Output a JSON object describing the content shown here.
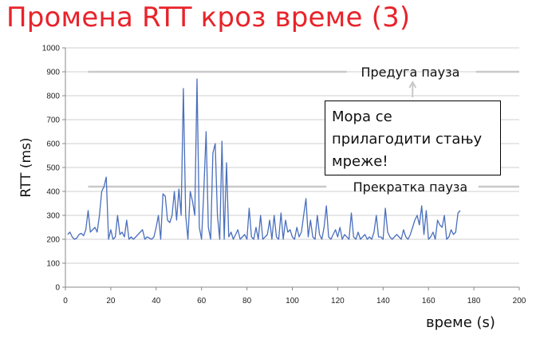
{
  "title": "Промена RTT кроз време (3)",
  "callout": {
    "lines": [
      "Мора се",
      "прилагодити стању",
      "мреже!"
    ]
  },
  "annotations": {
    "long_pause": {
      "label": "Предуга пауза",
      "y": 900
    },
    "short_pause": {
      "label": "Прекратка пауза",
      "y": 420
    }
  },
  "colors": {
    "title": "#e8232a",
    "series": "#4a6fbd",
    "grid": "#cfcfcf",
    "pause_line": "#c9c9c9",
    "arrow": "#c9c9c9"
  },
  "chart_data": {
    "type": "line",
    "xlabel": "време (s)",
    "ylabel": "RTT (ms)",
    "xlim": [
      0,
      200
    ],
    "ylim": [
      0,
      1000
    ],
    "xticks": [
      0,
      20,
      40,
      60,
      80,
      100,
      120,
      140,
      160,
      180,
      200
    ],
    "yticks": [
      0,
      100,
      200,
      300,
      400,
      500,
      600,
      700,
      800,
      900,
      1000
    ],
    "grid": true,
    "series": [
      {
        "x": [
          1,
          2,
          3,
          4,
          5,
          6,
          7,
          8,
          9,
          10,
          11,
          12,
          13,
          14,
          15,
          16,
          17,
          18,
          19,
          20,
          21,
          22,
          23,
          24,
          25,
          26,
          27,
          28,
          29,
          30,
          31,
          32,
          33,
          34,
          35,
          36,
          37,
          38,
          39,
          40,
          41,
          42,
          43,
          44,
          45,
          46,
          47,
          48,
          49,
          50,
          51,
          52,
          53,
          54,
          55,
          56,
          57,
          58,
          59,
          60,
          61,
          62,
          63,
          64,
          65,
          66,
          67,
          68,
          69,
          70,
          71,
          72,
          73,
          74,
          75,
          76,
          77,
          78,
          79,
          80,
          81,
          82,
          83,
          84,
          85,
          86,
          87,
          88,
          89,
          90,
          91,
          92,
          93,
          94,
          95,
          96,
          97,
          98,
          99,
          100,
          101,
          102,
          103,
          104,
          105,
          106,
          107,
          108,
          109,
          110,
          111,
          112,
          113,
          114,
          115,
          116,
          117,
          118,
          119,
          120,
          121,
          122,
          123,
          124,
          125,
          126,
          127,
          128,
          129,
          130,
          131,
          132,
          133,
          134,
          135,
          136,
          137,
          138,
          139,
          140,
          141,
          142,
          143,
          144,
          145,
          146,
          147,
          148,
          149,
          150,
          151,
          152,
          153,
          154,
          155,
          156,
          157,
          158,
          159,
          160,
          161,
          162,
          163,
          164,
          165,
          166,
          167,
          168,
          169,
          170,
          171,
          172,
          173,
          174
        ],
        "y": [
          220,
          230,
          210,
          200,
          205,
          220,
          225,
          215,
          240,
          320,
          230,
          240,
          250,
          230,
          300,
          400,
          420,
          460,
          200,
          240,
          200,
          210,
          300,
          220,
          230,
          210,
          280,
          200,
          210,
          200,
          210,
          220,
          230,
          240,
          200,
          210,
          205,
          200,
          210,
          250,
          300,
          200,
          390,
          380,
          280,
          270,
          300,
          400,
          280,
          410,
          300,
          830,
          300,
          200,
          400,
          360,
          300,
          870,
          250,
          200,
          400,
          650,
          250,
          200,
          560,
          600,
          300,
          200,
          610,
          200,
          520,
          210,
          230,
          200,
          220,
          240,
          200,
          210,
          220,
          200,
          330,
          210,
          200,
          250,
          200,
          300,
          200,
          210,
          220,
          280,
          200,
          300,
          210,
          200,
          310,
          200,
          280,
          230,
          240,
          210,
          200,
          250,
          210,
          230,
          300,
          370,
          210,
          280,
          210,
          200,
          300,
          220,
          200,
          250,
          340,
          210,
          200,
          220,
          240,
          210,
          250,
          200,
          220,
          210,
          200,
          310,
          210,
          200,
          230,
          200,
          210,
          220,
          200,
          210,
          200,
          230,
          300,
          210,
          210,
          200,
          330,
          230,
          210,
          200,
          210,
          220,
          210,
          200,
          240,
          210,
          200,
          220,
          250,
          280,
          300,
          260,
          340,
          220,
          320,
          200,
          210,
          230,
          200,
          280,
          260,
          250,
          300,
          200,
          210,
          240,
          220,
          230,
          310,
          320
        ]
      }
    ]
  }
}
